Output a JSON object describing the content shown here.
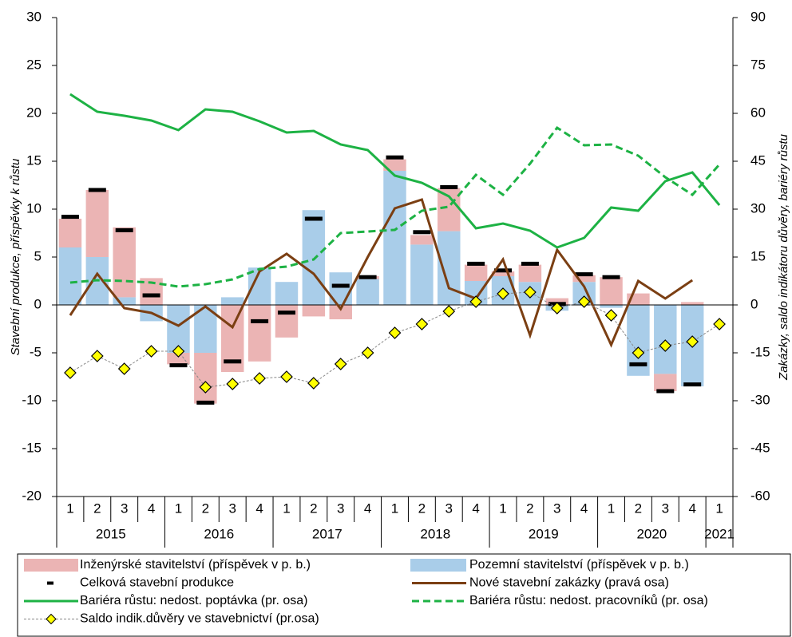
{
  "chart_data": {
    "type": "combo",
    "y_label": "Stavební produkce, příspěvky k růstu",
    "y2_label": "Zakázky, saldo indikátoru důvěry, bariéry růstu",
    "categories": [
      "1",
      "2",
      "3",
      "4",
      "1",
      "2",
      "3",
      "4",
      "1",
      "2",
      "3",
      "4",
      "1",
      "2",
      "3",
      "4",
      "1",
      "2",
      "3",
      "4",
      "1",
      "2",
      "3",
      "4",
      "1"
    ],
    "groups": [
      "2015",
      "2016",
      "2017",
      "2018",
      "2019",
      "2020",
      "2021"
    ],
    "ylim": [
      -20,
      30
    ],
    "yticks": [
      -20,
      -15,
      -10,
      -5,
      0,
      5,
      10,
      15,
      20,
      25,
      30
    ],
    "y2lim": [
      -60,
      90
    ],
    "y2ticks": [
      -60,
      -45,
      -30,
      -15,
      0,
      15,
      30,
      45,
      60,
      75,
      90
    ],
    "series": [
      {
        "name": "Inženýrské stavitelství  (příspěvek v p. b.)",
        "type": "bar",
        "color": "#ebb4b4",
        "values": [
          3,
          7,
          7.3,
          2.8,
          -1.2,
          -5.3,
          -7,
          -5.9,
          -3.4,
          -1.2,
          -1.5,
          0.3,
          1.2,
          1,
          4.5,
          1.7,
          0.5,
          1.8,
          0.7,
          0.7,
          2.9,
          1.2,
          -1.8,
          0.3,
          null
        ]
      },
      {
        "name": "Pozemní stavitelství (příspěvek v p. b.)",
        "type": "bar",
        "color": "#a9cde9",
        "values": [
          6,
          5,
          0.8,
          -1.7,
          -5,
          -5,
          0.8,
          3.9,
          2.4,
          9.9,
          3.4,
          2.7,
          14,
          6.3,
          7.7,
          2.5,
          3,
          2.4,
          -0.6,
          2.4,
          -0.3,
          -7.4,
          -7.2,
          -8.5,
          null
        ]
      },
      {
        "name": "Celková stavební produkce",
        "type": "marker",
        "color": "#000000",
        "values": [
          9.2,
          12,
          7.8,
          1,
          -6.3,
          -10.2,
          -5.9,
          -1.7,
          -0.8,
          9,
          2,
          2.9,
          15.4,
          7.6,
          12.3,
          4.3,
          3.6,
          4.3,
          0.1,
          3.2,
          2.9,
          -6.2,
          -9,
          -8.3,
          null
        ]
      },
      {
        "name": "Nové stavební zakázky (pravá osa)",
        "type": "line",
        "axis": "y2",
        "color": "#7b3f13",
        "values": [
          -3.25,
          9.75,
          -1,
          -2.5,
          -6.5,
          -0.5,
          -7,
          10.5,
          16,
          9.75,
          -1.25,
          15,
          30.25,
          33,
          5.25,
          2,
          14.25,
          -9.5,
          17.25,
          5.75,
          -12.5,
          7.5,
          2,
          7.75,
          null
        ]
      },
      {
        "name": "Bariéra růstu: nedost. poptávka (pr. osa)",
        "type": "line",
        "axis": "y2",
        "color": "#1db244",
        "values": [
          66,
          60.5,
          59.25,
          57.75,
          54.75,
          61.25,
          60.5,
          57.5,
          54,
          54.5,
          50.25,
          48.5,
          40.5,
          38.25,
          34,
          24,
          25.5,
          23.25,
          18,
          21,
          30.5,
          29.5,
          38.75,
          41.5,
          31.25
        ]
      },
      {
        "name": "Bariéra růstu: nedost. pracovníků (pr. osa)",
        "type": "dashed",
        "axis": "y2",
        "color": "#1db244",
        "values": [
          7,
          7.75,
          7.5,
          7,
          5.75,
          6.5,
          8,
          11.25,
          12,
          14.25,
          22.5,
          23,
          23.5,
          29.5,
          30.75,
          40.75,
          34.5,
          44.25,
          55.5,
          50,
          50.25,
          46.75,
          40,
          34.5,
          44
        ]
      },
      {
        "name": "Saldo indik.důvěry ve stavebnictví (pr.osa)",
        "type": "diamond",
        "axis": "y2",
        "color": "#ffff00",
        "values": [
          -21.25,
          -16,
          -20,
          -14.5,
          -14.5,
          -25.75,
          -24.75,
          -23,
          -22.5,
          -24.5,
          -18.5,
          -15,
          -8.75,
          -6,
          -2,
          1,
          3.5,
          4,
          -1,
          1,
          -3.25,
          -15,
          -12.75,
          -11.5,
          -6
        ]
      }
    ]
  }
}
